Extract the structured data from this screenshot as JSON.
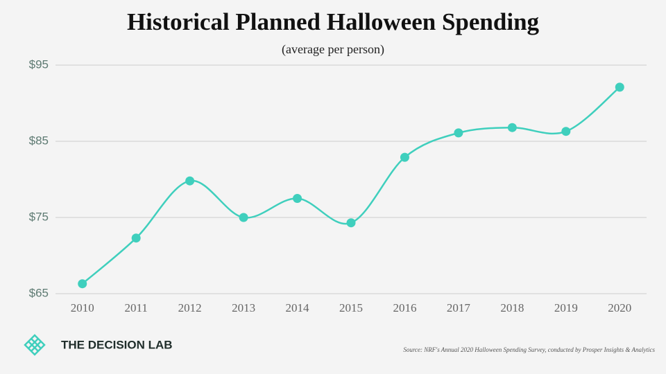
{
  "chart_data": {
    "type": "line",
    "title": "Historical Planned Halloween Spending",
    "subtitle": "(average per person)",
    "categories": [
      "2010",
      "2011",
      "2012",
      "2013",
      "2014",
      "2015",
      "2016",
      "2017",
      "2018",
      "2019",
      "2020"
    ],
    "series": [
      {
        "name": "Average planned spending",
        "color": "#3fcfbd",
        "values": [
          66.3,
          72.3,
          79.8,
          75.0,
          77.5,
          74.3,
          82.9,
          86.1,
          86.8,
          86.3,
          92.1
        ]
      }
    ],
    "ylim": [
      65,
      95
    ],
    "yticks": [
      {
        "value": 65,
        "label": "$65"
      },
      {
        "value": 75,
        "label": "$75"
      },
      {
        "value": 85,
        "label": "$85"
      },
      {
        "value": 95,
        "label": "$95"
      }
    ],
    "grid": true
  },
  "footer": {
    "brand": "THE DECISION LAB",
    "source": "Source: NRF's Annual 2020 Halloween Spending Survey, conducted by Prosper Insights & Analytics"
  }
}
